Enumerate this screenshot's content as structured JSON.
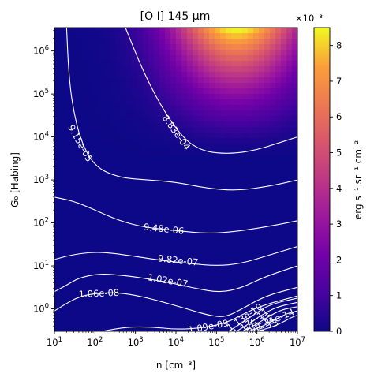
{
  "chart_data": {
    "type": "heatmap",
    "title": "[O I] 145 μm",
    "xlabel": "n [cm⁻³]",
    "ylabel": "G₀ [Habing]",
    "x_scale": "log",
    "y_scale": "log",
    "xlim": [
      10,
      10000000
    ],
    "ylim": [
      0.3,
      3500000
    ],
    "x_ticks": [
      {
        "value": 10,
        "base": "10",
        "exp": "1"
      },
      {
        "value": 100,
        "base": "10",
        "exp": "2"
      },
      {
        "value": 1000,
        "base": "10",
        "exp": "3"
      },
      {
        "value": 10000,
        "base": "10",
        "exp": "4"
      },
      {
        "value": 100000,
        "base": "10",
        "exp": "5"
      },
      {
        "value": 1000000,
        "base": "10",
        "exp": "6"
      },
      {
        "value": 10000000,
        "base": "10",
        "exp": "7"
      }
    ],
    "y_ticks": [
      {
        "value": 1,
        "base": "10",
        "exp": "0"
      },
      {
        "value": 10,
        "base": "10",
        "exp": "1"
      },
      {
        "value": 100,
        "base": "10",
        "exp": "2"
      },
      {
        "value": 1000,
        "base": "10",
        "exp": "3"
      },
      {
        "value": 10000,
        "base": "10",
        "exp": "4"
      },
      {
        "value": 100000,
        "base": "10",
        "exp": "5"
      },
      {
        "value": 1000000,
        "base": "10",
        "exp": "6"
      }
    ],
    "colormap": "plasma",
    "colorbar": {
      "label": "erg s⁻¹ sr⁻¹ cm⁻²",
      "multiplier": "×10⁻³",
      "range": [
        0,
        0.0085
      ],
      "ticks": [
        {
          "value": 0,
          "label": "0"
        },
        {
          "value": 0.001,
          "label": "1"
        },
        {
          "value": 0.002,
          "label": "2"
        },
        {
          "value": 0.003,
          "label": "3"
        },
        {
          "value": 0.004,
          "label": "4"
        },
        {
          "value": 0.005,
          "label": "5"
        },
        {
          "value": 0.006,
          "label": "6"
        },
        {
          "value": 0.007,
          "label": "7"
        },
        {
          "value": 0.008,
          "label": "8"
        }
      ]
    },
    "peak": {
      "log_n": 5.5,
      "log_g0": 6.5,
      "value": 0.0085
    },
    "contours": [
      {
        "label": "8.83e-04",
        "label_at": [
          4.0,
          4.1
        ],
        "points": [
          [
            2.75,
            6.55
          ],
          [
            3.2,
            5.5
          ],
          [
            3.7,
            4.6
          ],
          [
            4.2,
            3.95
          ],
          [
            4.6,
            3.7
          ],
          [
            5.0,
            3.62
          ],
          [
            5.5,
            3.62
          ],
          [
            6.0,
            3.7
          ],
          [
            6.5,
            3.85
          ],
          [
            7.0,
            4.0
          ]
        ]
      },
      {
        "label": "9.15e-05",
        "label_at": [
          1.63,
          3.85
        ],
        "points": [
          [
            1.3,
            6.55
          ],
          [
            1.35,
            5.5
          ],
          [
            1.45,
            4.7
          ],
          [
            1.65,
            3.9
          ],
          [
            2.0,
            3.3
          ],
          [
            2.6,
            3.05
          ],
          [
            3.3,
            3.0
          ],
          [
            4.0,
            2.95
          ],
          [
            4.8,
            2.8
          ],
          [
            5.5,
            2.75
          ],
          [
            6.3,
            2.85
          ],
          [
            7.0,
            3.0
          ]
        ]
      },
      {
        "label": "9.48e-06",
        "label_at": [
          3.7,
          1.85
        ],
        "points": [
          [
            1.0,
            2.6
          ],
          [
            1.5,
            2.5
          ],
          [
            2.0,
            2.3
          ],
          [
            2.6,
            2.05
          ],
          [
            3.2,
            1.9
          ],
          [
            4.0,
            1.82
          ],
          [
            4.8,
            1.75
          ],
          [
            5.5,
            1.8
          ],
          [
            6.3,
            1.92
          ],
          [
            7.0,
            2.05
          ]
        ]
      },
      {
        "label": "9.82e-07",
        "label_at": [
          4.05,
          1.12
        ],
        "points": [
          [
            1.0,
            1.15
          ],
          [
            1.4,
            1.25
          ],
          [
            1.9,
            1.32
          ],
          [
            2.4,
            1.3
          ],
          [
            3.0,
            1.22
          ],
          [
            3.7,
            1.12
          ],
          [
            4.4,
            1.05
          ],
          [
            5.0,
            1.0
          ],
          [
            5.6,
            1.05
          ],
          [
            6.3,
            1.25
          ],
          [
            7.0,
            1.45
          ]
        ]
      },
      {
        "label": "1.02e-07",
        "label_at": [
          3.8,
          0.65
        ],
        "points": [
          [
            1.0,
            0.4
          ],
          [
            1.3,
            0.55
          ],
          [
            1.6,
            0.72
          ],
          [
            2.1,
            0.82
          ],
          [
            2.7,
            0.78
          ],
          [
            3.3,
            0.7
          ],
          [
            3.9,
            0.6
          ],
          [
            4.5,
            0.47
          ],
          [
            5.1,
            0.38
          ],
          [
            5.6,
            0.48
          ],
          [
            6.2,
            0.75
          ],
          [
            7.0,
            1.0
          ]
        ]
      },
      {
        "label": "1.06e-08",
        "label_at": [
          2.1,
          0.35
        ],
        "points": [
          [
            1.0,
            -0.05
          ],
          [
            1.25,
            0.1
          ],
          [
            1.6,
            0.28
          ],
          [
            2.0,
            0.36
          ],
          [
            2.5,
            0.38
          ],
          [
            3.0,
            0.32
          ],
          [
            3.6,
            0.18
          ],
          [
            4.2,
            0.02
          ],
          [
            4.8,
            -0.15
          ],
          [
            5.2,
            -0.2
          ],
          [
            5.6,
            -0.02
          ],
          [
            6.2,
            0.3
          ],
          [
            7.0,
            0.5
          ]
        ]
      },
      {
        "label": "1.09e-09",
        "label_at": [
          4.8,
          -0.42
        ],
        "points": [
          [
            2.2,
            -0.52
          ],
          [
            2.8,
            -0.42
          ],
          [
            3.4,
            -0.42
          ],
          [
            4.0,
            -0.48
          ],
          [
            4.6,
            -0.45
          ],
          [
            5.0,
            -0.38
          ],
          [
            5.35,
            -0.28
          ],
          [
            5.7,
            -0.1
          ],
          [
            6.2,
            0.1
          ],
          [
            7.0,
            0.3
          ]
        ]
      },
      {
        "label": "1.13e-10",
        "label_at": [
          5.7,
          -0.2
        ],
        "points": [
          [
            5.3,
            -0.52
          ],
          [
            5.6,
            -0.35
          ],
          [
            5.9,
            -0.15
          ],
          [
            6.3,
            0.1
          ],
          [
            7.0,
            0.25
          ]
        ]
      },
      {
        "label": "1.17e-11",
        "label_at": [
          5.85,
          -0.32
        ],
        "points": [
          [
            5.5,
            -0.52
          ],
          [
            5.8,
            -0.35
          ],
          [
            6.1,
            -0.15
          ],
          [
            6.5,
            0.05
          ],
          [
            7.0,
            0.15
          ]
        ]
      },
      {
        "label": "1.22e-12",
        "label_at": [
          5.95,
          -0.4
        ],
        "points": [
          [
            5.65,
            -0.52
          ],
          [
            5.95,
            -0.38
          ],
          [
            6.25,
            -0.2
          ],
          [
            6.6,
            -0.02
          ],
          [
            7.0,
            0.05
          ]
        ]
      },
      {
        "label": "1.26e-13",
        "label_at": [
          6.05,
          -0.47
        ],
        "points": [
          [
            5.8,
            -0.52
          ],
          [
            6.1,
            -0.42
          ],
          [
            6.4,
            -0.28
          ],
          [
            6.7,
            -0.12
          ],
          [
            7.0,
            -0.05
          ]
        ]
      },
      {
        "label": "1.31e-14",
        "label_at": [
          6.45,
          -0.25
        ],
        "points": [
          [
            6.0,
            -0.52
          ],
          [
            6.3,
            -0.45
          ],
          [
            6.6,
            -0.33
          ],
          [
            6.85,
            -0.2
          ],
          [
            7.0,
            -0.15
          ]
        ]
      }
    ]
  }
}
